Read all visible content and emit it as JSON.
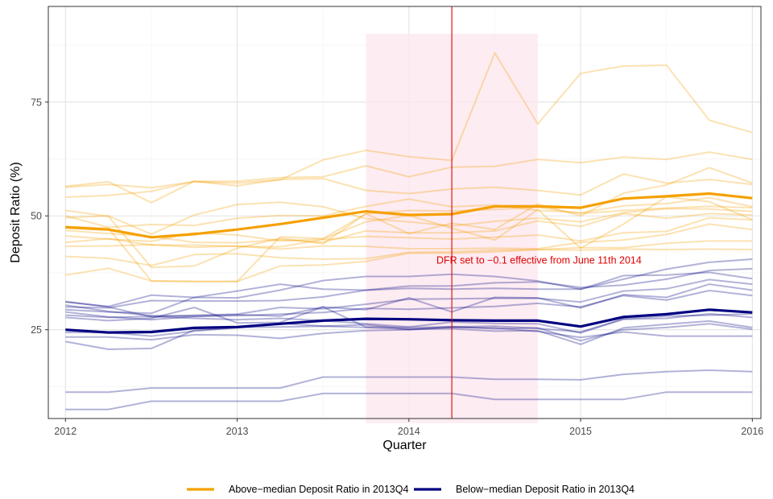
{
  "colors": {
    "above": "#F5A000",
    "below": "#000080",
    "shade": "#FDE7EF",
    "vline": "#E00000",
    "annotation": "#E00000",
    "grid_major": "#E3E3E3",
    "grid_minor": "#F2F2F2"
  },
  "chart_data": {
    "type": "line",
    "title": "",
    "xlabel": "Quarter",
    "ylabel": "Deposit Ratio (%)",
    "xlim": [
      2011.9,
      2016.05
    ],
    "ylim": [
      5.5,
      96
    ],
    "x_ticks": [
      {
        "value": 2012,
        "label": "2012"
      },
      {
        "value": 2013,
        "label": "2013"
      },
      {
        "value": 2014,
        "label": "2014"
      },
      {
        "value": 2015,
        "label": "2015"
      },
      {
        "value": 2016,
        "label": "2016"
      }
    ],
    "y_ticks": [
      {
        "value": 25,
        "label": "25"
      },
      {
        "value": 50,
        "label": "50"
      },
      {
        "value": 75,
        "label": "75"
      }
    ],
    "grid": true,
    "x": [
      2012,
      2012.25,
      2012.5,
      2012.75,
      2013,
      2013.25,
      2013.5,
      2013.75,
      2014,
      2014.25,
      2014.5,
      2014.75,
      2015,
      2015.25,
      2015.5,
      2015.75,
      2016
    ],
    "shaded_region": {
      "x": [
        2013.75,
        2014.75
      ],
      "y": [
        4.5,
        90
      ]
    },
    "vline": {
      "x": 2014.25
    },
    "annotation": {
      "text": "DFR set to −0.1 effective from June 11th 2014",
      "x": 2014.16,
      "y": 40.2
    },
    "legend_position": "bottom",
    "legend": [
      {
        "label": "Above−median Deposit Ratio in 2013Q4",
        "group": "above"
      },
      {
        "label": "Below−median Deposit Ratio in 2013Q4",
        "group": "below"
      }
    ],
    "series": [
      {
        "group": "above",
        "kind": "average",
        "values": [
          47.5,
          47.0,
          45.3,
          46.0,
          47.0,
          48.2,
          49.6,
          51.0,
          50.2,
          50.4,
          52.1,
          52.1,
          51.8,
          53.8,
          54.3,
          54.9,
          53.9
        ]
      },
      {
        "group": "above",
        "kind": "bank",
        "values": [
          56.3,
          56.9,
          56.2,
          57.5,
          57.2,
          57.9,
          62.3,
          64.4,
          63.0,
          62.2,
          85.8,
          70.2,
          81.3,
          82.9,
          83.1,
          71.0,
          68.3
        ]
      },
      {
        "group": "above",
        "kind": "bank",
        "values": [
          54.1,
          54.5,
          55.4,
          57.6,
          57.6,
          58.4,
          58.6,
          61.0,
          58.6,
          60.7,
          60.9,
          62.4,
          61.7,
          62.9,
          62.4,
          64.0,
          62.4
        ]
      },
      {
        "group": "above",
        "kind": "bank",
        "values": [
          56.5,
          57.5,
          52.9,
          57.6,
          56.6,
          58.0,
          58.2,
          55.6,
          54.9,
          55.9,
          56.3,
          55.6,
          54.6,
          59.2,
          57.2,
          58.0,
          56.9
        ]
      },
      {
        "group": "above",
        "kind": "bank",
        "values": [
          51.2,
          49.9,
          38.7,
          39.0,
          42.9,
          45.1,
          43.9,
          50.5,
          46.1,
          48.4,
          47.0,
          52.6,
          50.0,
          55.0,
          56.8,
          60.6,
          57.2
        ]
      },
      {
        "group": "above",
        "kind": "bank",
        "values": [
          50.0,
          47.5,
          48.1,
          47.9,
          49.5,
          50.1,
          50.0,
          52.1,
          53.7,
          52.0,
          52.4,
          51.2,
          50.7,
          52.2,
          52.7,
          54.0,
          52.0
        ]
      },
      {
        "group": "above",
        "kind": "bank",
        "values": [
          49.6,
          50.0,
          46.0,
          50.2,
          52.5,
          53.0,
          52.0,
          49.4,
          48.7,
          47.8,
          48.8,
          49.5,
          48.7,
          50.7,
          51.6,
          51.5,
          51.0
        ]
      },
      {
        "group": "above",
        "kind": "bank",
        "values": [
          46.8,
          46.1,
          45.5,
          44.2,
          44.1,
          44.8,
          44.2,
          46.7,
          46.3,
          46.3,
          46.7,
          48.9,
          47.7,
          50.5,
          49.5,
          50.5,
          50.2
        ]
      },
      {
        "group": "above",
        "kind": "bank",
        "values": [
          45.6,
          44.9,
          44.4,
          46.3,
          45.8,
          44.5,
          44.9,
          48.7,
          50.1,
          47.3,
          44.7,
          51.4,
          42.9,
          48.2,
          54.2,
          53.1,
          49.2
        ]
      },
      {
        "group": "above",
        "kind": "bank",
        "values": [
          44.2,
          45.0,
          43.6,
          43.6,
          43.3,
          43.2,
          44.8,
          45.5,
          45.2,
          44.9,
          45.3,
          45.8,
          44.5,
          46.3,
          46.6,
          49.6,
          49.1
        ]
      },
      {
        "group": "above",
        "kind": "bank",
        "values": [
          43.3,
          43.4,
          43.7,
          43.1,
          43.4,
          42.7,
          43.4,
          43.3,
          42.8,
          42.8,
          42.9,
          42.8,
          44.2,
          44.7,
          45.9,
          48.2,
          47.0
        ]
      },
      {
        "group": "above",
        "kind": "bank",
        "values": [
          41.1,
          40.7,
          39.1,
          41.5,
          41.7,
          40.8,
          40.5,
          40.6,
          42.0,
          42.1,
          42.5,
          42.6,
          42.5,
          42.7,
          42.6,
          42.7,
          42.6
        ]
      },
      {
        "group": "above",
        "kind": "bank",
        "values": [
          37.0,
          38.5,
          35.7,
          35.6,
          35.6,
          39.0,
          39.2,
          40.0,
          41.8,
          41.8,
          42.1,
          42.6,
          43.0,
          43.0,
          44.0,
          44.5,
          44.5
        ]
      },
      {
        "group": "above",
        "kind": "bank",
        "values": [
          47.7,
          47.3,
          35.7,
          35.6,
          35.6,
          45.4,
          45.0,
          50.5,
          51.2,
          51.1,
          51.4,
          51.9,
          50.5,
          51.2,
          51.7,
          52.1,
          51.8
        ]
      },
      {
        "group": "below",
        "kind": "average",
        "values": [
          25.0,
          24.4,
          24.5,
          25.4,
          25.6,
          26.3,
          27.0,
          27.4,
          27.3,
          27.1,
          27.0,
          27.0,
          25.7,
          27.8,
          28.4,
          29.4,
          28.8
        ]
      },
      {
        "group": "below",
        "kind": "bank",
        "values": [
          31.1,
          30.1,
          32.6,
          32.1,
          32.0,
          33.7,
          35.8,
          36.7,
          36.7,
          37.2,
          36.7,
          35.7,
          33.9,
          36.1,
          38.3,
          39.8,
          40.5
        ]
      },
      {
        "group": "below",
        "kind": "bank",
        "values": [
          30.0,
          29.8,
          31.4,
          31.3,
          31.3,
          31.4,
          32.2,
          33.7,
          34.6,
          34.6,
          35.3,
          35.5,
          34.3,
          34.8,
          36.1,
          38.0,
          38.4
        ]
      },
      {
        "group": "below",
        "kind": "bank",
        "values": [
          29.4,
          28.9,
          28.6,
          32.1,
          33.5,
          35.0,
          33.9,
          33.7,
          34.1,
          33.9,
          34.1,
          33.9,
          33.9,
          36.9,
          37.0,
          37.6,
          36.2
        ]
      },
      {
        "group": "below",
        "kind": "bank",
        "values": [
          31.2,
          30.0,
          27.8,
          28.2,
          28.4,
          29.9,
          29.6,
          30.6,
          31.7,
          31.8,
          31.9,
          31.9,
          31.1,
          33.5,
          34.0,
          36.0,
          35.0
        ]
      },
      {
        "group": "below",
        "kind": "bank",
        "values": [
          30.4,
          29.0,
          28.1,
          28.0,
          28.3,
          28.0,
          30.0,
          29.4,
          32.0,
          28.9,
          32.1,
          32.0,
          29.8,
          32.7,
          32.1,
          35.0,
          33.7
        ]
      },
      {
        "group": "below",
        "kind": "bank",
        "values": [
          28.9,
          27.8,
          27.2,
          27.9,
          28.1,
          28.4,
          28.8,
          29.7,
          29.5,
          29.8,
          30.1,
          30.8,
          30.0,
          32.5,
          31.5,
          33.6,
          32.5
        ]
      },
      {
        "group": "below",
        "kind": "bank",
        "values": [
          27.7,
          27.0,
          27.5,
          29.9,
          26.5,
          26.6,
          30.0,
          25.6,
          25.5,
          25.6,
          25.8,
          25.3,
          24.5,
          27.4,
          28.0,
          28.2,
          28.5
        ]
      },
      {
        "group": "below",
        "kind": "bank",
        "values": [
          28.2,
          27.7,
          27.9,
          27.5,
          27.2,
          27.5,
          27.0,
          26.3,
          25.6,
          26.7,
          26.4,
          26.3,
          24.3,
          27.3,
          27.5,
          28.5,
          27.7
        ]
      },
      {
        "group": "below",
        "kind": "bank",
        "values": [
          24.4,
          24.4,
          23.6,
          24.7,
          25.5,
          25.6,
          25.8,
          26.1,
          25.1,
          25.7,
          25.2,
          25.4,
          22.6,
          25.0,
          25.5,
          26.3,
          25.1
        ]
      },
      {
        "group": "below",
        "kind": "bank",
        "values": [
          22.4,
          20.7,
          20.9,
          24.9,
          25.4,
          26.4,
          25.8,
          25.5,
          25.1,
          25.2,
          24.7,
          24.8,
          21.8,
          25.4,
          26.2,
          26.9,
          25.5
        ]
      },
      {
        "group": "below",
        "kind": "bank",
        "values": [
          23.4,
          23.4,
          22.8,
          23.9,
          23.8,
          23.1,
          24.2,
          24.8,
          25.0,
          25.5,
          25.4,
          24.6,
          23.3,
          24.5,
          23.6,
          23.6,
          23.6
        ]
      },
      {
        "group": "below",
        "kind": "bank",
        "values": [
          11.3,
          11.3,
          12.2,
          12.2,
          12.2,
          12.2,
          14.6,
          14.6,
          14.6,
          14.6,
          14.1,
          14.1,
          14.0,
          15.2,
          15.8,
          16.1,
          15.8
        ]
      },
      {
        "group": "below",
        "kind": "bank",
        "values": [
          7.5,
          7.5,
          9.3,
          9.3,
          9.3,
          9.3,
          11.0,
          11.0,
          11.0,
          11.0,
          9.7,
          9.7,
          9.7,
          9.7,
          11.3,
          11.3,
          11.3
        ]
      }
    ]
  }
}
